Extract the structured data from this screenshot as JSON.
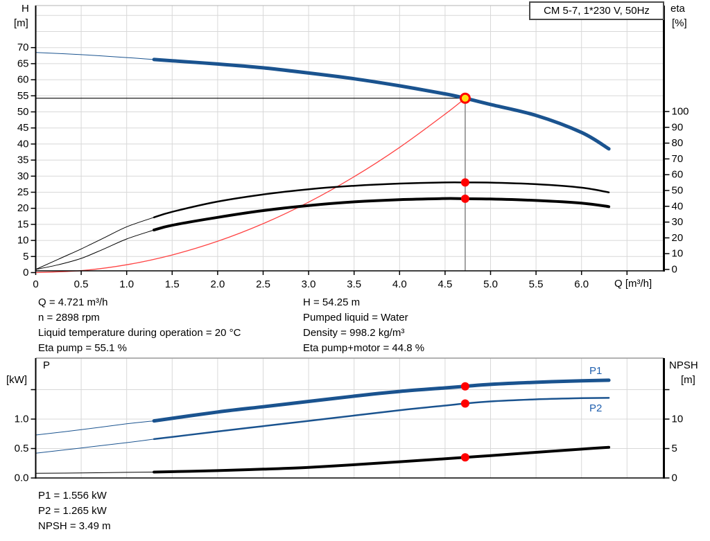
{
  "labels": {
    "h": "H",
    "h_unit": "[m]",
    "eta": "eta",
    "eta_unit": "[%]",
    "q": "Q [m³/h]",
    "p": "P",
    "p_unit": "[kW]",
    "npsh": "NPSH",
    "npsh_unit": "[m]"
  },
  "info_top_left": [
    "Q = 4.721 m³/h",
    "n = 2898 rpm",
    "Liquid temperature during operation = 20 °C",
    "Eta pump = 55.1 %"
  ],
  "info_top_right": [
    "H = 54.25 m",
    "Pumped liquid = Water",
    "Density = 998.2 kg/m³",
    "Eta pump+motor = 44.8 %"
  ],
  "info_bottom": [
    "P1 = 1.556 kW",
    "P2 = 1.265 kW",
    "NPSH = 3.49 m"
  ],
  "colors": {
    "curve_blue": "#1a538f",
    "label_blue": "#1f5fae",
    "system_red": "#ff4343",
    "marker_red": "#ff0000",
    "duty_yellow": "#ffdf0f",
    "grid": "#d8d8d8",
    "duty_line_gray": "#8c8c8c",
    "black": "#000000"
  },
  "chart_data": [
    {
      "type": "line",
      "name": "pump-performance-chart",
      "title": "CM 5-7, 1*230 V, 50Hz",
      "x_axis": {
        "label": "Q [m³/h]",
        "min": 0,
        "max": 6.91,
        "tick_step": 0.5,
        "tick_labels": [
          "0",
          "0.5",
          "1.0",
          "1.5",
          "2.0",
          "2.5",
          "3.0",
          "3.5",
          "4.0",
          "4.5",
          "5.0",
          "5.5",
          "6.0"
        ]
      },
      "y_left": {
        "label": "H [m]",
        "min": 0,
        "max": 82,
        "tick_step": 5,
        "tick_labels": [
          "0",
          "5",
          "10",
          "15",
          "20",
          "25",
          "30",
          "35",
          "40",
          "45",
          "50",
          "55",
          "60",
          "65",
          "70"
        ]
      },
      "y_right": {
        "label": "eta [%]",
        "min": 0,
        "max": 100,
        "tick_step": 10,
        "tick_labels": [
          "0",
          "10",
          "20",
          "30",
          "40",
          "50",
          "60",
          "70",
          "80",
          "90",
          "100"
        ]
      },
      "duty_point": {
        "q": 4.721,
        "v": 54.25,
        "axis": "left",
        "ref_lines": true
      },
      "duty_markers": [
        {
          "q": 4.721,
          "v": 55.1,
          "axis": "right"
        },
        {
          "q": 4.721,
          "v": 44.8,
          "axis": "right"
        }
      ],
      "series": [
        {
          "id": "system-curve",
          "label": "System curve",
          "axis": "left",
          "color": "#ff4343",
          "width": 1.3,
          "thin_until": null,
          "points": [
            [
              0,
              0
            ],
            [
              0.5,
              0.61
            ],
            [
              1,
              2.43
            ],
            [
              1.5,
              5.48
            ],
            [
              2,
              9.74
            ],
            [
              2.5,
              15.21
            ],
            [
              3,
              21.91
            ],
            [
              3.5,
              29.82
            ],
            [
              4,
              38.94
            ],
            [
              4.5,
              49.28
            ],
            [
              4.721,
              54.25
            ]
          ]
        },
        {
          "id": "eta-pump-curve",
          "label": "Eta pump",
          "axis": "right",
          "color": "#000000",
          "width": 2.5,
          "thin_until": 1.3,
          "points": [
            [
              0,
              0
            ],
            [
              0.25,
              6.5
            ],
            [
              0.5,
              13
            ],
            [
              0.75,
              20
            ],
            [
              1,
              27
            ],
            [
              1.3,
              33
            ],
            [
              1.5,
              36.5
            ],
            [
              2,
              43
            ],
            [
              2.5,
              47.5
            ],
            [
              3,
              50.8
            ],
            [
              3.5,
              53
            ],
            [
              4,
              54.4
            ],
            [
              4.5,
              55.1
            ],
            [
              4.721,
              55.1
            ],
            [
              5,
              55
            ],
            [
              5.5,
              54
            ],
            [
              6,
              51.8
            ],
            [
              6.3,
              48.8
            ]
          ]
        },
        {
          "id": "eta-pump-motor-curve",
          "label": "Eta pump+motor",
          "axis": "right",
          "color": "#000000",
          "width": 4,
          "thin_until": 1.3,
          "points": [
            [
              0,
              0
            ],
            [
              0.25,
              3
            ],
            [
              0.5,
              7
            ],
            [
              0.75,
              13
            ],
            [
              1,
              19.3
            ],
            [
              1.3,
              25
            ],
            [
              1.5,
              28
            ],
            [
              2,
              33
            ],
            [
              2.5,
              37.3
            ],
            [
              3,
              40.5
            ],
            [
              3.5,
              42.8
            ],
            [
              4,
              44.2
            ],
            [
              4.5,
              44.9
            ],
            [
              4.721,
              44.8
            ],
            [
              5,
              44.6
            ],
            [
              5.5,
              43.7
            ],
            [
              6,
              42
            ],
            [
              6.3,
              39.8
            ]
          ]
        },
        {
          "id": "head-curve",
          "label": "H",
          "axis": "left",
          "color": "#1a538f",
          "width": 5,
          "thin_until": 1.3,
          "points": [
            [
              0,
              68.5
            ],
            [
              0.5,
              67.8
            ],
            [
              1,
              66.9
            ],
            [
              1.3,
              66.3
            ],
            [
              1.5,
              65.9
            ],
            [
              2,
              64.9
            ],
            [
              2.5,
              63.7
            ],
            [
              3,
              62.1
            ],
            [
              3.5,
              60.3
            ],
            [
              4,
              58.1
            ],
            [
              4.5,
              55.6
            ],
            [
              4.721,
              54.25
            ],
            [
              5,
              52.3
            ],
            [
              5.5,
              48.9
            ],
            [
              6,
              43.6
            ],
            [
              6.3,
              38.5
            ]
          ]
        }
      ]
    },
    {
      "type": "line",
      "name": "power-npsh-chart",
      "title": "",
      "x_axis": {
        "label": "",
        "min": 0,
        "max": 6.91,
        "tick_step": 0.5,
        "tick_labels": []
      },
      "y_left": {
        "label": "P [kW]",
        "min": 0,
        "max": 2.03,
        "tick_step": 0.5,
        "tick_labels": [
          "0.0",
          "0.5",
          "1.0"
        ]
      },
      "y_right": {
        "label": "NPSH [m]",
        "min": 0,
        "max": 20.3,
        "tick_step": 5,
        "tick_labels": [
          "0",
          "5",
          "10"
        ]
      },
      "duty_point": null,
      "duty_markers": [
        {
          "q": 4.721,
          "v": 1.556,
          "axis": "left"
        },
        {
          "q": 4.721,
          "v": 1.265,
          "axis": "left"
        },
        {
          "q": 4.721,
          "v": 3.49,
          "axis": "right"
        }
      ],
      "series": [
        {
          "id": "npsh-curve",
          "label": "NPSH",
          "axis": "right",
          "color": "#000000",
          "width": 4,
          "thin_until": 1.3,
          "points": [
            [
              0,
              0.8
            ],
            [
              0.5,
              0.85
            ],
            [
              1,
              0.95
            ],
            [
              1.3,
              1.0
            ],
            [
              2,
              1.25
            ],
            [
              2.5,
              1.5
            ],
            [
              3,
              1.8
            ],
            [
              3.5,
              2.25
            ],
            [
              4,
              2.75
            ],
            [
              4.721,
              3.49
            ],
            [
              5,
              3.8
            ],
            [
              5.5,
              4.35
            ],
            [
              6,
              4.9
            ],
            [
              6.3,
              5.2
            ]
          ]
        },
        {
          "id": "p2-curve",
          "label": "P2",
          "axis": "left",
          "color": "#1a538f",
          "width": 2.5,
          "thin_until": 1.3,
          "points": [
            [
              0,
              0.42
            ],
            [
              0.5,
              0.51
            ],
            [
              1,
              0.6
            ],
            [
              1.3,
              0.66
            ],
            [
              2,
              0.79
            ],
            [
              2.5,
              0.88
            ],
            [
              3,
              0.97
            ],
            [
              3.5,
              1.06
            ],
            [
              4,
              1.15
            ],
            [
              4.5,
              1.23
            ],
            [
              4.721,
              1.265
            ],
            [
              5,
              1.3
            ],
            [
              5.5,
              1.335
            ],
            [
              6,
              1.355
            ],
            [
              6.3,
              1.36
            ]
          ]
        },
        {
          "id": "p1-curve",
          "label": "P1",
          "axis": "left",
          "color": "#1a538f",
          "width": 5,
          "thin_until": 1.3,
          "points": [
            [
              0,
              0.73
            ],
            [
              0.5,
              0.82
            ],
            [
              1,
              0.92
            ],
            [
              1.3,
              0.97
            ],
            [
              2,
              1.12
            ],
            [
              2.5,
              1.21
            ],
            [
              3,
              1.3
            ],
            [
              3.5,
              1.39
            ],
            [
              4,
              1.47
            ],
            [
              4.5,
              1.53
            ],
            [
              4.721,
              1.556
            ],
            [
              5,
              1.59
            ],
            [
              5.5,
              1.625
            ],
            [
              6,
              1.65
            ],
            [
              6.3,
              1.66
            ]
          ]
        }
      ]
    }
  ]
}
